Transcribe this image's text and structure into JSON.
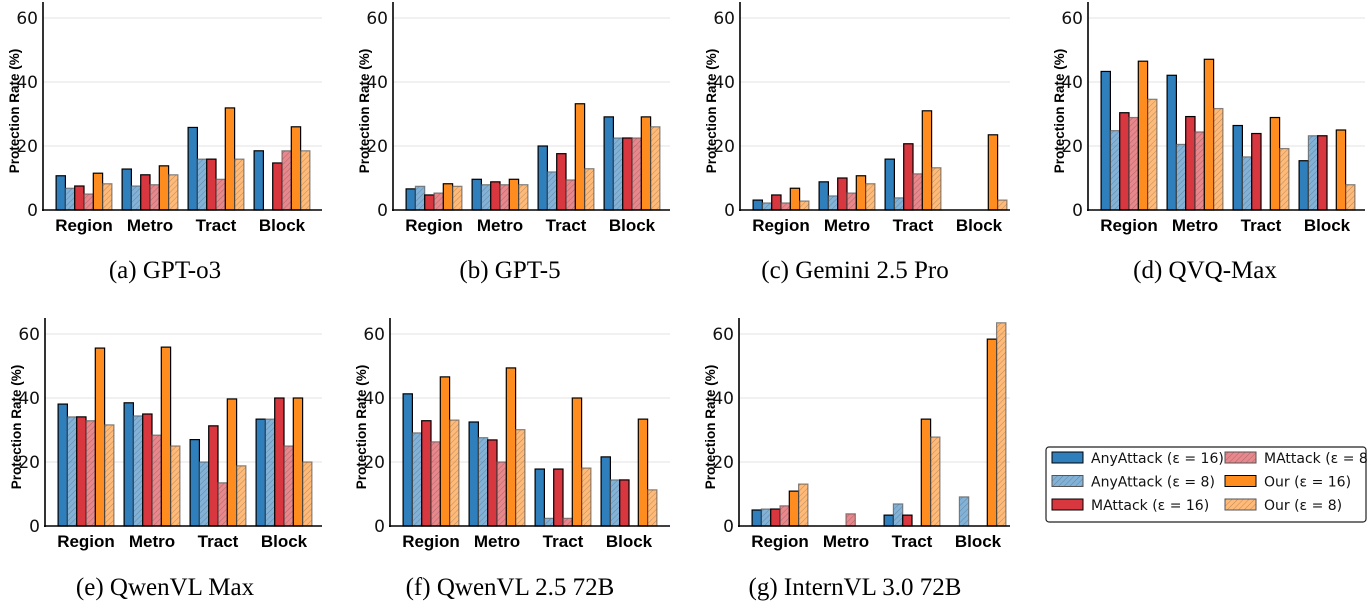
{
  "colors": {
    "anyattack": "#2f7fbd",
    "mattack": "#d8373f",
    "our": "#ff8c1e"
  },
  "legend": {
    "placement": "right, lower row",
    "entries": [
      "AnyAttack (ε = 16)",
      "AnyAttack (ε = 8)",
      "MAttack (ε = 16)",
      "MAttack (ε = 8)",
      "Our (ε = 16)",
      "Our (ε = 8)"
    ]
  },
  "chart_data": [
    {
      "type": "bar",
      "title": "(a) GPT-o3",
      "ylabel": "Protection Rate (%)",
      "ylim": [
        0,
        65
      ],
      "yticks": [
        "0",
        "20",
        "40",
        "60"
      ],
      "grid": true,
      "categories": [
        "Region",
        "Metro",
        "Tract",
        "Block"
      ],
      "series": [
        {
          "name": "AnyAttack (ε = 16)",
          "values": [
            10.7,
            12.8,
            25.8,
            18.5
          ]
        },
        {
          "name": "AnyAttack (ε = 8)",
          "values": [
            6.8,
            7.5,
            15.9,
            0
          ]
        },
        {
          "name": "MAttack (ε = 16)",
          "values": [
            7.5,
            11.0,
            15.9,
            14.7
          ]
        },
        {
          "name": "MAttack (ε = 8)",
          "values": [
            5.0,
            7.9,
            9.6,
            18.5
          ]
        },
        {
          "name": "Our (ε = 16)",
          "values": [
            11.5,
            13.8,
            31.9,
            26.0
          ]
        },
        {
          "name": "Our (ε = 8)",
          "values": [
            8.2,
            11.0,
            15.9,
            18.5
          ]
        }
      ]
    },
    {
      "type": "bar",
      "title": "(b) GPT-5",
      "ylabel": "Protection Rate (%)",
      "ylim": [
        0,
        65
      ],
      "yticks": [
        "0",
        "20",
        "40",
        "60"
      ],
      "grid": true,
      "categories": [
        "Region",
        "Metro",
        "Tract",
        "Block"
      ],
      "series": [
        {
          "name": "AnyAttack (ε = 16)",
          "values": [
            6.6,
            9.6,
            20.0,
            29.1
          ]
        },
        {
          "name": "AnyAttack (ε = 8)",
          "values": [
            7.4,
            7.9,
            11.9,
            22.5
          ]
        },
        {
          "name": "MAttack (ε = 16)",
          "values": [
            4.7,
            8.8,
            17.6,
            22.5
          ]
        },
        {
          "name": "MAttack (ε = 8)",
          "values": [
            5.3,
            7.9,
            9.4,
            22.5
          ]
        },
        {
          "name": "Our (ε = 16)",
          "values": [
            8.2,
            9.6,
            33.2,
            29.1
          ]
        },
        {
          "name": "Our (ε = 8)",
          "values": [
            7.4,
            7.9,
            12.9,
            26.0
          ]
        }
      ]
    },
    {
      "type": "bar",
      "title": "(c) Gemini 2.5 Pro",
      "ylabel": "Protection Rate (%)",
      "ylim": [
        0,
        65
      ],
      "yticks": [
        "0",
        "20",
        "40",
        "60"
      ],
      "grid": true,
      "categories": [
        "Region",
        "Metro",
        "Tract",
        "Block"
      ],
      "series": [
        {
          "name": "AnyAttack (ε = 16)",
          "values": [
            3.1,
            8.8,
            15.9,
            0
          ]
        },
        {
          "name": "AnyAttack (ε = 8)",
          "values": [
            2.2,
            4.4,
            3.8,
            0
          ]
        },
        {
          "name": "MAttack (ε = 16)",
          "values": [
            4.7,
            10.0,
            20.7,
            0
          ]
        },
        {
          "name": "MAttack (ε = 8)",
          "values": [
            2.2,
            5.3,
            11.3,
            0
          ]
        },
        {
          "name": "Our (ε = 16)",
          "values": [
            6.8,
            10.7,
            31.0,
            23.5
          ]
        },
        {
          "name": "Our (ε = 8)",
          "values": [
            2.8,
            8.2,
            13.2,
            3.1
          ]
        }
      ]
    },
    {
      "type": "bar",
      "title": "(d) QVQ-Max",
      "ylabel": "Protection Rate (%)",
      "ylim": [
        0,
        65
      ],
      "yticks": [
        "0",
        "20",
        "40",
        "60"
      ],
      "grid": true,
      "categories": [
        "Region",
        "Metro",
        "Tract",
        "Block"
      ],
      "series": [
        {
          "name": "AnyAttack (ε = 16)",
          "values": [
            43.3,
            42.1,
            26.4,
            15.4
          ]
        },
        {
          "name": "AnyAttack (ε = 8)",
          "values": [
            24.8,
            20.5,
            16.6,
            23.2
          ]
        },
        {
          "name": "MAttack (ε = 16)",
          "values": [
            30.4,
            29.2,
            23.9,
            23.2
          ]
        },
        {
          "name": "MAttack (ε = 8)",
          "values": [
            28.9,
            24.4,
            0,
            0
          ]
        },
        {
          "name": "Our (ε = 16)",
          "values": [
            46.5,
            47.1,
            28.9,
            25.0
          ]
        },
        {
          "name": "Our (ε = 8)",
          "values": [
            34.6,
            31.7,
            19.2,
            7.9
          ]
        }
      ]
    },
    {
      "type": "bar",
      "title": "(e) QwenVL Max",
      "ylabel": "Protection Rate (%)",
      "ylim": [
        0,
        65
      ],
      "yticks": [
        "0",
        "20",
        "40",
        "60"
      ],
      "grid": true,
      "categories": [
        "Region",
        "Metro",
        "Tract",
        "Block"
      ],
      "series": [
        {
          "name": "AnyAttack (ε = 16)",
          "values": [
            38.1,
            38.5,
            27.0,
            33.4
          ]
        },
        {
          "name": "AnyAttack (ε = 8)",
          "values": [
            34.1,
            34.4,
            20.0,
            33.4
          ]
        },
        {
          "name": "MAttack (ε = 16)",
          "values": [
            34.1,
            35.0,
            31.3,
            40.0
          ]
        },
        {
          "name": "MAttack (ε = 8)",
          "values": [
            32.9,
            28.4,
            13.5,
            25.0
          ]
        },
        {
          "name": "Our (ε = 16)",
          "values": [
            55.6,
            55.9,
            39.7,
            40.0
          ]
        },
        {
          "name": "Our (ε = 8)",
          "values": [
            31.6,
            25.0,
            18.8,
            20.0
          ]
        }
      ]
    },
    {
      "type": "bar",
      "title": "(f) QwenVL 2.5 72B",
      "ylabel": "Protection Rate (%)",
      "ylim": [
        0,
        65
      ],
      "yticks": [
        "0",
        "20",
        "40",
        "60"
      ],
      "grid": true,
      "categories": [
        "Region",
        "Metro",
        "Tract",
        "Block"
      ],
      "series": [
        {
          "name": "AnyAttack (ε = 16)",
          "values": [
            41.3,
            32.5,
            17.8,
            21.6
          ]
        },
        {
          "name": "AnyAttack (ε = 8)",
          "values": [
            29.1,
            27.6,
            2.4,
            14.4
          ]
        },
        {
          "name": "MAttack (ε = 16)",
          "values": [
            32.9,
            26.9,
            17.8,
            14.4
          ]
        },
        {
          "name": "MAttack (ε = 8)",
          "values": [
            26.3,
            20.0,
            2.4,
            0
          ]
        },
        {
          "name": "Our (ε = 16)",
          "values": [
            46.6,
            49.4,
            40.0,
            33.4
          ]
        },
        {
          "name": "Our (ε = 8)",
          "values": [
            33.1,
            30.1,
            18.1,
            11.3
          ]
        }
      ]
    },
    {
      "type": "bar",
      "title": "(g) InternVL 3.0 72B",
      "ylabel": "Protection Rate (%)",
      "ylim": [
        0,
        65
      ],
      "yticks": [
        "0",
        "20",
        "40",
        "60"
      ],
      "grid": true,
      "categories": [
        "Region",
        "Metro",
        "Tract",
        "Block"
      ],
      "series": [
        {
          "name": "AnyAttack (ε = 16)",
          "values": [
            5.0,
            0,
            3.4,
            0
          ]
        },
        {
          "name": "AnyAttack (ε = 8)",
          "values": [
            5.3,
            0,
            6.9,
            9.1
          ]
        },
        {
          "name": "MAttack (ε = 16)",
          "values": [
            5.3,
            0,
            3.4,
            0
          ]
        },
        {
          "name": "MAttack (ε = 8)",
          "values": [
            6.3,
            3.8,
            0,
            0
          ]
        },
        {
          "name": "Our (ε = 16)",
          "values": [
            10.9,
            0,
            33.4,
            58.4
          ]
        },
        {
          "name": "Our (ε = 8)",
          "values": [
            13.1,
            0,
            27.8,
            63.5
          ]
        }
      ]
    }
  ]
}
